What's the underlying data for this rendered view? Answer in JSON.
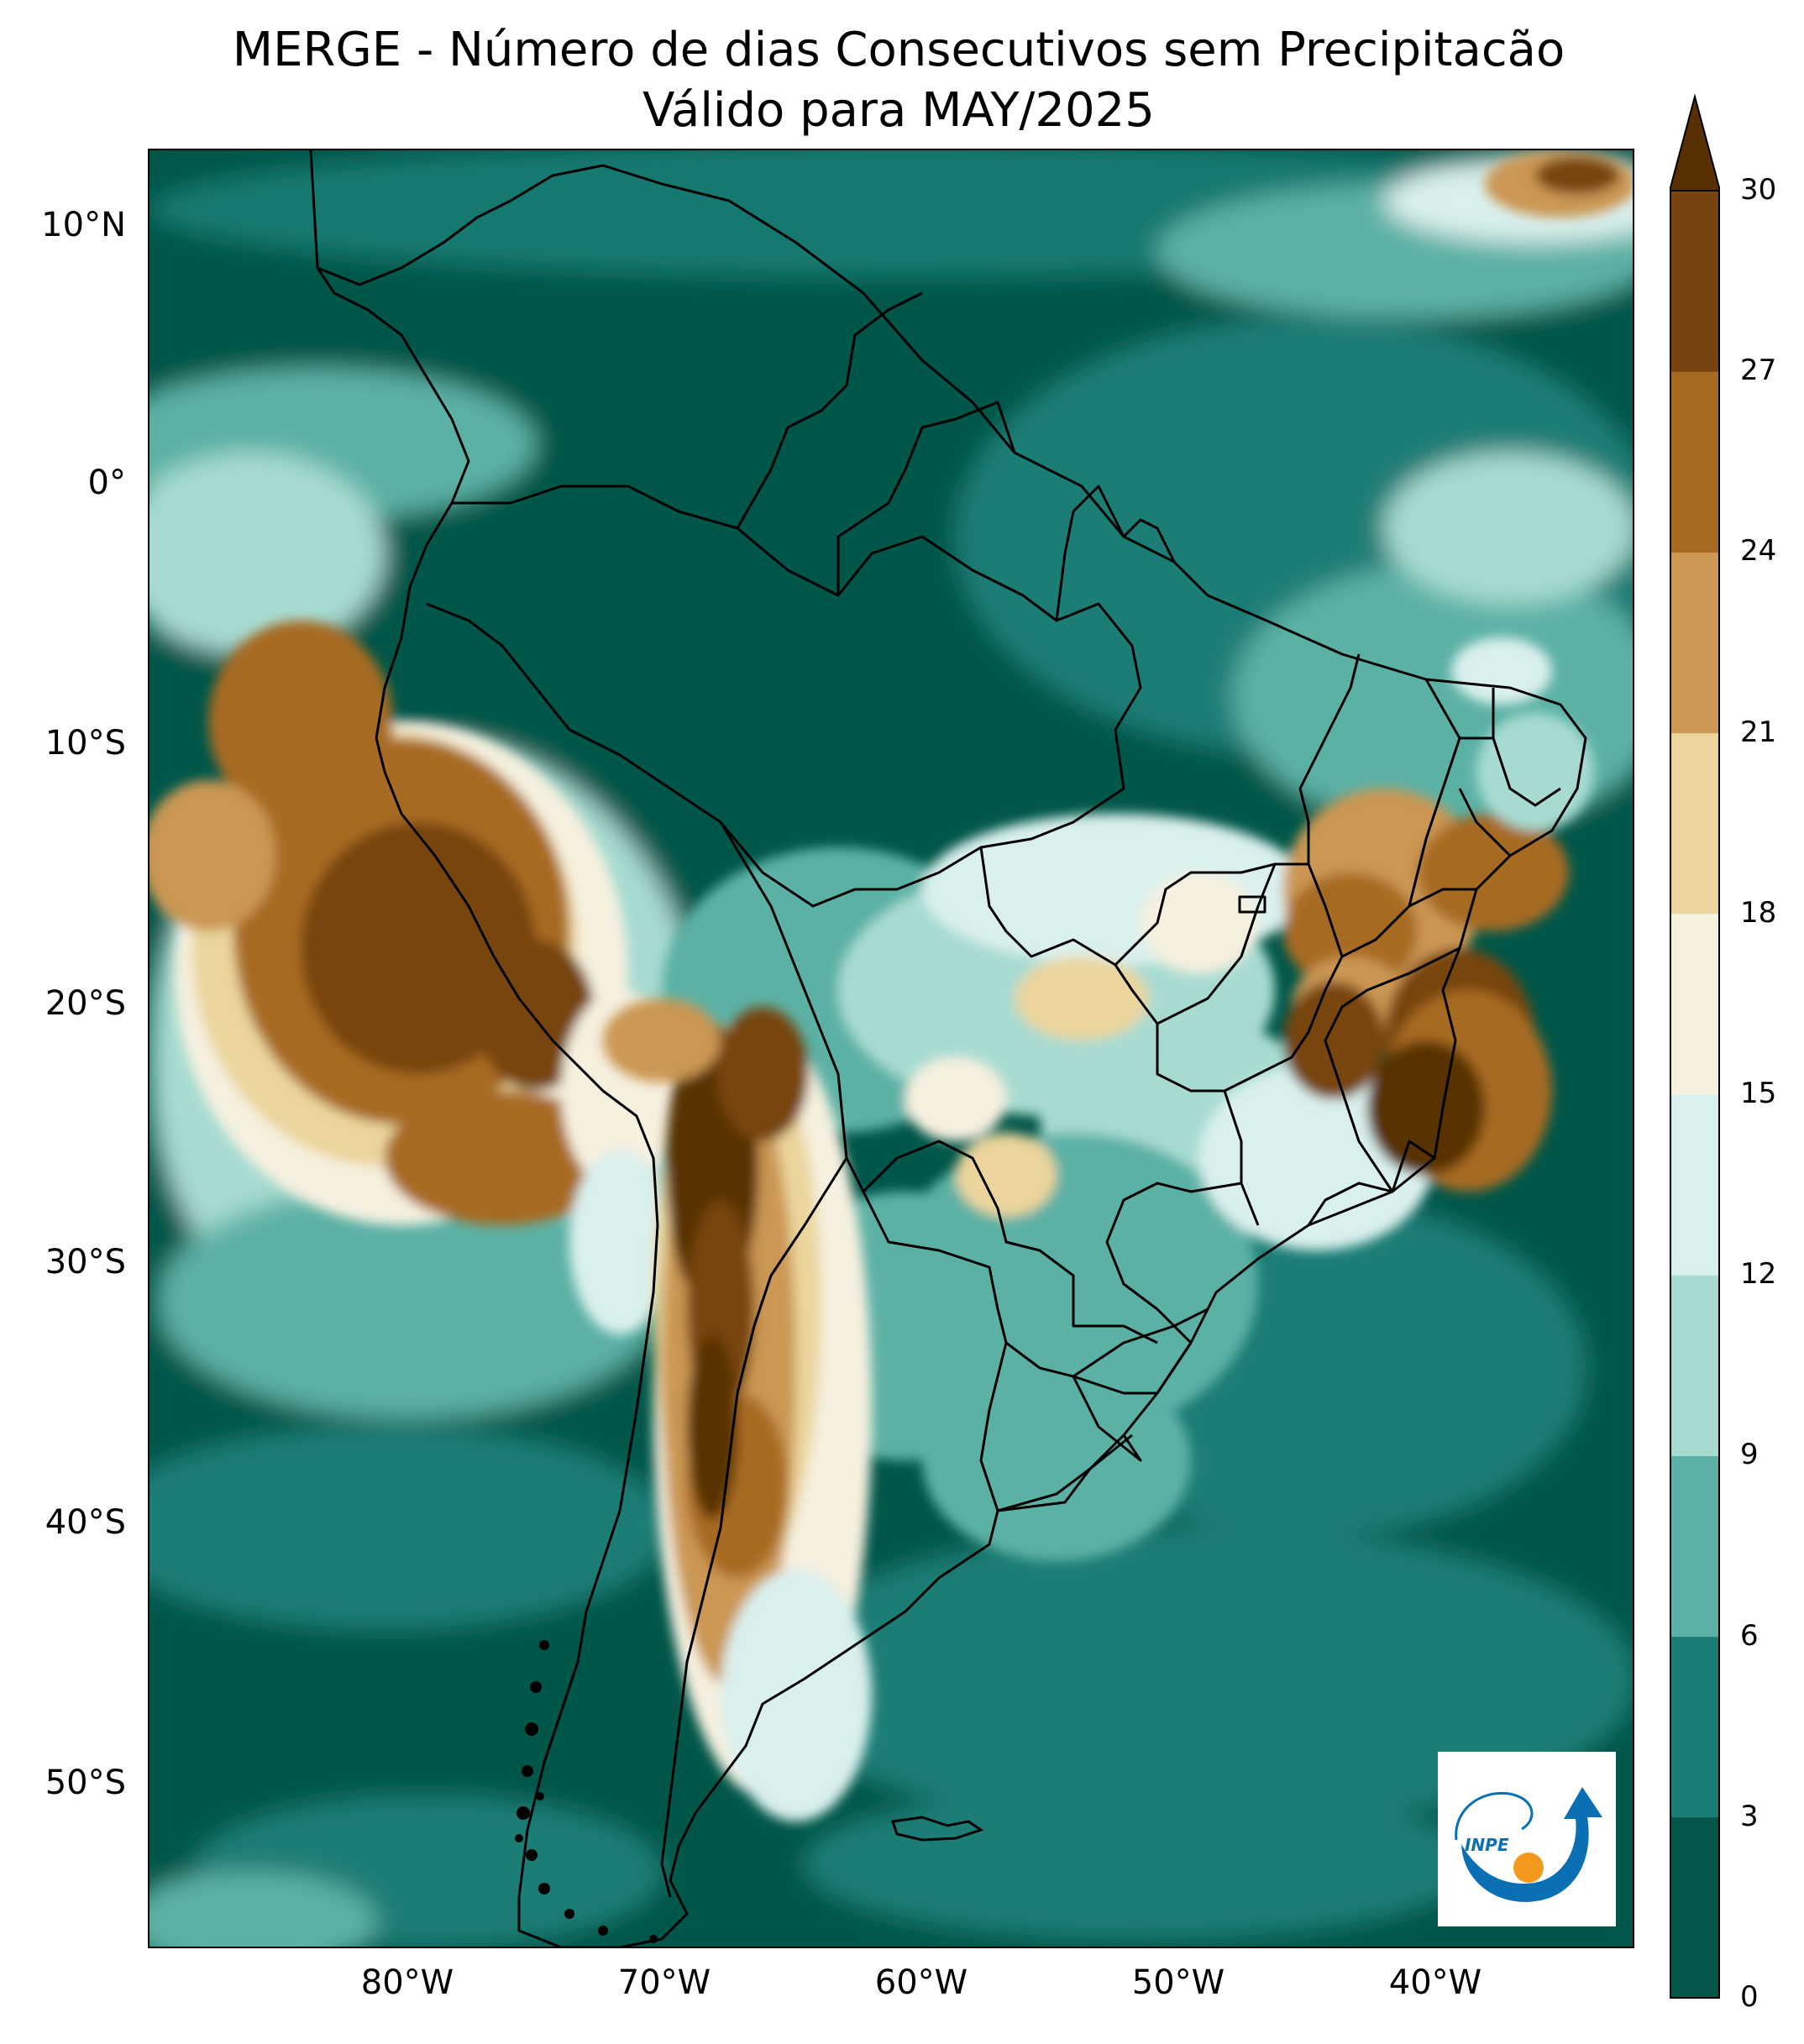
{
  "title": {
    "line1": "MERGE - Número de dias Consecutivos sem Precipitacão",
    "line2": "Válido para MAY/2025"
  },
  "axes": {
    "lat_labels": [
      "10°N",
      "0°",
      "10°S",
      "20°S",
      "30°S",
      "40°S",
      "50°S"
    ],
    "lon_labels": [
      "80°W",
      "70°W",
      "60°W",
      "50°W",
      "40°W"
    ]
  },
  "colorbar": {
    "tick_labels": [
      "0",
      "3",
      "6",
      "9",
      "12",
      "15",
      "18",
      "21",
      "24",
      "27",
      "30"
    ],
    "colors": [
      "#02564a",
      "#1a7d74",
      "#5bb1a5",
      "#a7dbd2",
      "#daf0ed",
      "#f6f0df",
      "#ebd59c",
      "#cb9752",
      "#a76a22",
      "#774410",
      "#583004"
    ],
    "extend": "max"
  },
  "logo": {
    "text": "INPE",
    "colors": {
      "blue": "#0a6fb3",
      "orange": "#f39a1e"
    }
  }
}
